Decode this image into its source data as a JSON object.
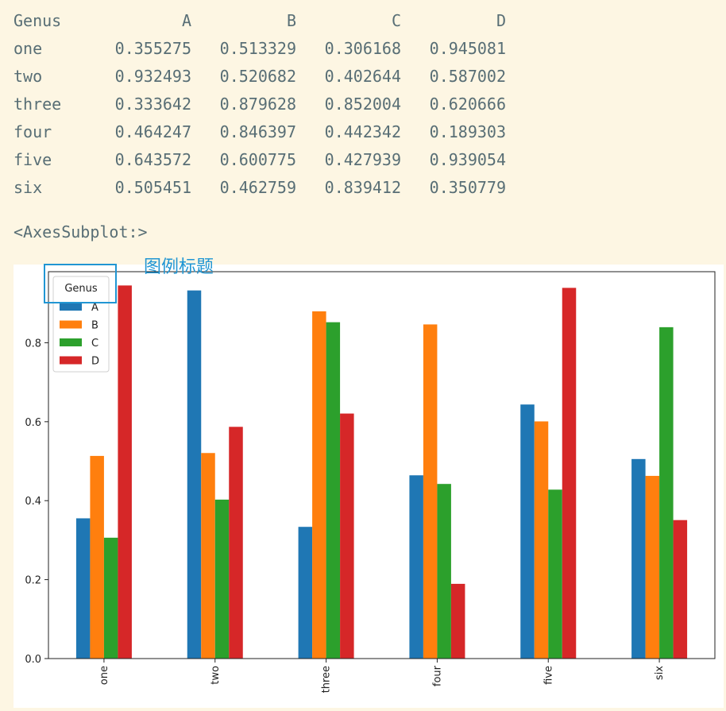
{
  "table": {
    "index_name": "Genus",
    "columns": [
      "A",
      "B",
      "C",
      "D"
    ],
    "rows": [
      {
        "label": "one",
        "values": [
          "0.355275",
          "0.513329",
          "0.306168",
          "0.945081"
        ]
      },
      {
        "label": "two",
        "values": [
          "0.932493",
          "0.520682",
          "0.402644",
          "0.587002"
        ]
      },
      {
        "label": "three",
        "values": [
          "0.333642",
          "0.879628",
          "0.852004",
          "0.620666"
        ]
      },
      {
        "label": "four",
        "values": [
          "0.464247",
          "0.846397",
          "0.442342",
          "0.189303"
        ]
      },
      {
        "label": "five",
        "values": [
          "0.643572",
          "0.600775",
          "0.427939",
          "0.939054"
        ]
      },
      {
        "label": "six",
        "values": [
          "0.505451",
          "0.462759",
          "0.839412",
          "0.350779"
        ]
      }
    ]
  },
  "repr_text": "<AxesSubplot:>",
  "annotation": {
    "text": "图例标题",
    "color": "#2196d3"
  },
  "chart_data": {
    "type": "bar",
    "categories": [
      "one",
      "two",
      "three",
      "four",
      "five",
      "six"
    ],
    "series": [
      {
        "name": "A",
        "color": "#1f77b4",
        "values": [
          0.355275,
          0.932493,
          0.333642,
          0.464247,
          0.643572,
          0.505451
        ]
      },
      {
        "name": "B",
        "color": "#ff7f0e",
        "values": [
          0.513329,
          0.520682,
          0.879628,
          0.846397,
          0.600775,
          0.462759
        ]
      },
      {
        "name": "C",
        "color": "#2ca02c",
        "values": [
          0.306168,
          0.402644,
          0.852004,
          0.442342,
          0.427939,
          0.839412
        ]
      },
      {
        "name": "D",
        "color": "#d62728",
        "values": [
          0.945081,
          0.587002,
          0.620666,
          0.189303,
          0.939054,
          0.350779
        ]
      }
    ],
    "legend_title": "Genus",
    "legend_position": "upper-left",
    "ylim": [
      0,
      0.98
    ],
    "yticks": [
      0.0,
      0.2,
      0.4,
      0.6,
      0.8
    ],
    "ytick_labels": [
      "0.0",
      "0.2",
      "0.4",
      "0.6",
      "0.8"
    ],
    "xtick_rotation": "vertical",
    "grid": false
  }
}
